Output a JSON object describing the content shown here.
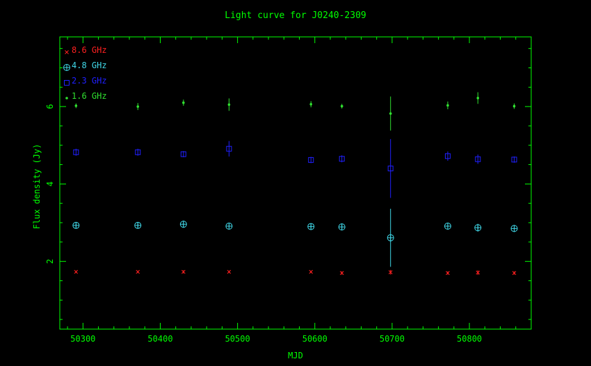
{
  "chart_data": {
    "type": "scatter",
    "title": "Light curve for J0240-2309",
    "xlabel": "MJD",
    "ylabel": "Flux density (Jy)",
    "xlim": [
      50270,
      50880
    ],
    "ylim": [
      0.25,
      7.8
    ],
    "xticks": [
      50300,
      50400,
      50500,
      50600,
      50700,
      50800
    ],
    "yticks": [
      2,
      4,
      6
    ],
    "grid": false,
    "legend_position": "top-left",
    "axis_color": "#00ff00",
    "background": "#000000",
    "series": [
      {
        "name": "8.6 GHz",
        "marker": "x",
        "color": "#ff2020",
        "x": [
          50291,
          50371,
          50430,
          50489,
          50595,
          50635,
          50698,
          50772,
          50811,
          50858
        ],
        "y": [
          1.73,
          1.73,
          1.73,
          1.73,
          1.73,
          1.7,
          1.72,
          1.7,
          1.71,
          1.7
        ],
        "err": [
          0.03,
          0.03,
          0.04,
          0.03,
          0.03,
          0.04,
          0.06,
          0.04,
          0.06,
          0.04
        ]
      },
      {
        "name": "4.8 GHz",
        "marker": "circle-plus",
        "color": "#40d8e8",
        "x": [
          50291,
          50371,
          50430,
          50489,
          50595,
          50635,
          50698,
          50772,
          50811,
          50858
        ],
        "y": [
          2.93,
          2.93,
          2.96,
          2.91,
          2.9,
          2.89,
          2.61,
          2.91,
          2.87,
          2.85
        ],
        "err": [
          0.07,
          0.07,
          0.09,
          0.07,
          0.07,
          0.09,
          0.75,
          0.09,
          0.1,
          0.09
        ]
      },
      {
        "name": "2.3 GHz",
        "marker": "square",
        "color": "#2020ff",
        "x": [
          50291,
          50371,
          50430,
          50489,
          50595,
          50635,
          50698,
          50772,
          50811,
          50858
        ],
        "y": [
          4.82,
          4.82,
          4.77,
          4.91,
          4.62,
          4.65,
          4.4,
          4.72,
          4.64,
          4.63
        ],
        "err": [
          0.09,
          0.09,
          0.08,
          0.2,
          0.08,
          0.09,
          0.76,
          0.12,
          0.12,
          0.08
        ]
      },
      {
        "name": "1.6 GHz",
        "marker": "dot",
        "color": "#30e030",
        "x": [
          50291,
          50371,
          50430,
          50489,
          50595,
          50635,
          50698,
          50772,
          50811,
          50858
        ],
        "y": [
          6.02,
          6.0,
          6.1,
          6.05,
          6.06,
          6.01,
          5.82,
          6.03,
          6.22,
          6.01
        ],
        "err": [
          0.06,
          0.09,
          0.08,
          0.16,
          0.08,
          0.06,
          0.44,
          0.1,
          0.15,
          0.07
        ]
      }
    ]
  }
}
